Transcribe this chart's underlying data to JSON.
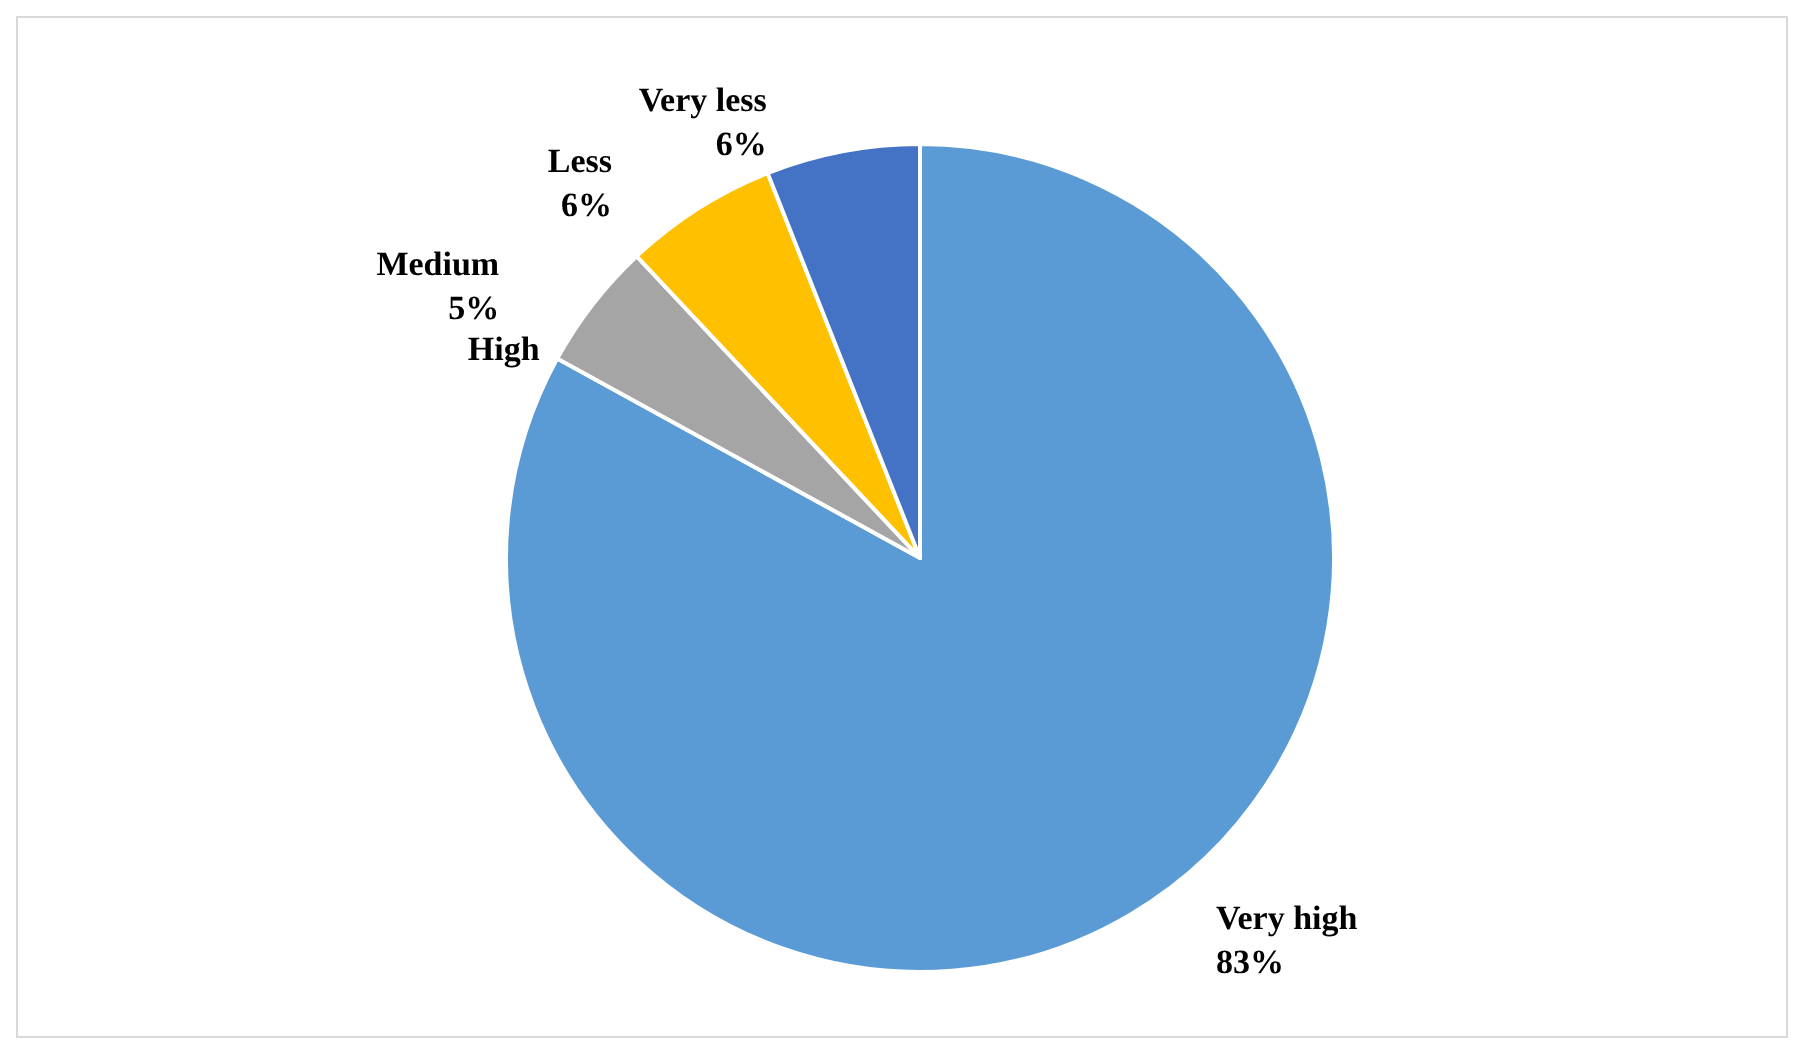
{
  "chart_data": {
    "type": "pie",
    "categories": [
      "Very high",
      "High",
      "Medium",
      "Less",
      "Very less"
    ],
    "values": [
      83,
      0,
      5,
      6,
      6
    ],
    "colors": [
      "#5b9bd5",
      "#ed7d31",
      "#a5a5a5",
      "#ffc000",
      "#4472c4"
    ],
    "value_labels": [
      "83%",
      null,
      "5%",
      "6%",
      "6%"
    ],
    "legend": false
  }
}
